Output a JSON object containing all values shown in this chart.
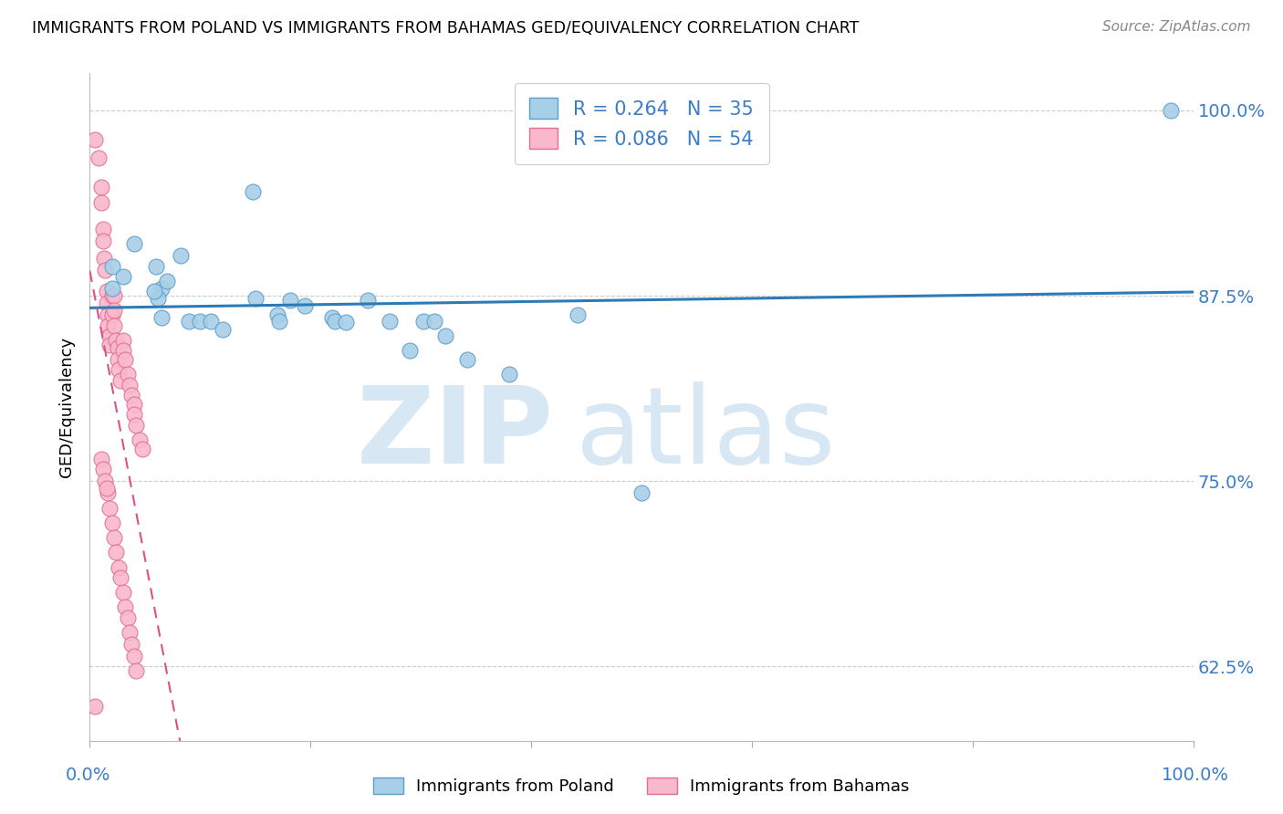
{
  "title": "IMMIGRANTS FROM POLAND VS IMMIGRANTS FROM BAHAMAS GED/EQUIVALENCY CORRELATION CHART",
  "source": "Source: ZipAtlas.com",
  "ylabel": "GED/Equivalency",
  "poland_R": 0.264,
  "poland_N": 35,
  "bahamas_R": 0.086,
  "bahamas_N": 54,
  "poland_color": "#a8cfe8",
  "bahamas_color": "#f9b8cc",
  "poland_edge_color": "#5b9dc9",
  "bahamas_edge_color": "#e07090",
  "poland_line_color": "#2c7bb6",
  "bahamas_line_color": "#e05080",
  "tick_color": "#3a7dc9",
  "grid_color": "#cccccc",
  "xlim": [
    0.0,
    1.0
  ],
  "ylim": [
    0.575,
    1.025
  ],
  "yticks": [
    0.625,
    0.75,
    0.875,
    1.0
  ],
  "ytick_labels": [
    "62.5%",
    "75.0%",
    "87.5%",
    "100.0%"
  ],
  "poland_x": [
    0.02,
    0.04,
    0.148,
    0.02,
    0.06,
    0.065,
    0.07,
    0.09,
    0.1,
    0.11,
    0.12,
    0.15,
    0.17,
    0.172,
    0.182,
    0.195,
    0.22,
    0.222,
    0.232,
    0.252,
    0.272,
    0.29,
    0.302,
    0.312,
    0.322,
    0.342,
    0.38,
    0.442,
    0.5,
    0.03,
    0.082,
    0.062,
    0.058,
    0.065,
    0.98
  ],
  "poland_y": [
    0.895,
    0.91,
    0.945,
    0.88,
    0.895,
    0.88,
    0.885,
    0.858,
    0.858,
    0.858,
    0.852,
    0.873,
    0.862,
    0.858,
    0.872,
    0.868,
    0.86,
    0.858,
    0.857,
    0.872,
    0.858,
    0.838,
    0.858,
    0.858,
    0.848,
    0.832,
    0.822,
    0.862,
    0.742,
    0.888,
    0.902,
    0.873,
    0.878,
    0.86,
    1.0
  ],
  "bahamas_x": [
    0.005,
    0.008,
    0.01,
    0.01,
    0.012,
    0.012,
    0.013,
    0.014,
    0.015,
    0.015,
    0.016,
    0.016,
    0.018,
    0.018,
    0.02,
    0.02,
    0.022,
    0.022,
    0.022,
    0.024,
    0.025,
    0.025,
    0.026,
    0.028,
    0.03,
    0.03,
    0.032,
    0.034,
    0.036,
    0.038,
    0.04,
    0.04,
    0.042,
    0.045,
    0.048,
    0.01,
    0.012,
    0.014,
    0.016,
    0.018,
    0.02,
    0.022,
    0.024,
    0.026,
    0.028,
    0.03,
    0.032,
    0.034,
    0.036,
    0.038,
    0.04,
    0.042,
    0.015,
    0.005
  ],
  "bahamas_y": [
    0.98,
    0.968,
    0.948,
    0.938,
    0.92,
    0.912,
    0.9,
    0.892,
    0.878,
    0.87,
    0.862,
    0.855,
    0.848,
    0.842,
    0.875,
    0.862,
    0.875,
    0.865,
    0.855,
    0.845,
    0.84,
    0.832,
    0.825,
    0.818,
    0.845,
    0.838,
    0.832,
    0.822,
    0.815,
    0.808,
    0.802,
    0.795,
    0.788,
    0.778,
    0.772,
    0.765,
    0.758,
    0.75,
    0.742,
    0.732,
    0.722,
    0.712,
    0.702,
    0.692,
    0.685,
    0.675,
    0.665,
    0.658,
    0.648,
    0.64,
    0.632,
    0.622,
    0.745,
    0.598
  ]
}
